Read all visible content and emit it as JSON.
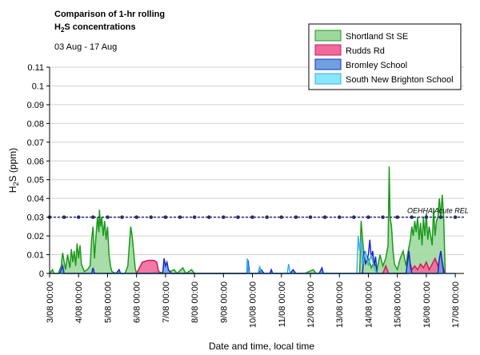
{
  "chart_data": {
    "type": "area",
    "title_line1": "Comparison of 1-hr rolling",
    "title_line2_pre": "H",
    "title_line2_sub": "2",
    "title_line2_post": "S concentrations",
    "subtitle": "03 Aug - 17 Aug",
    "ylabel_pre": "H",
    "ylabel_sub": "2",
    "ylabel_post": "S (ppm)",
    "xlabel": "Date and time, local time",
    "ylim": [
      0,
      0.11
    ],
    "y_ticks": [
      "0",
      "0.01",
      "0.02",
      "0.03",
      "0.04",
      "0.05",
      "0.06",
      "0.07",
      "0.08",
      "0.09",
      "0.1",
      "0.11"
    ],
    "x_ticks": [
      "3/08 00:00",
      "4/08 00:00",
      "5/08 00:00",
      "6/08 00:00",
      "7/08 00:00",
      "8/08 00:00",
      "9/08 00:00",
      "10/08 00:00",
      "11/08 00:00",
      "12/08 00:00",
      "13/08 00:00",
      "14/08 00:00",
      "15/08 00:00",
      "16/08 00:00",
      "17/08 00:00"
    ],
    "grid": true,
    "legend_position": "top-right",
    "reference_line": {
      "label": "OEHHA Acute REL",
      "value": 0.03,
      "color": "#2a2a6a"
    },
    "series": [
      {
        "name": "Shortland St SE",
        "fill": "#9fd89f",
        "stroke": "#1a9a1a",
        "points": [
          [
            0.0,
            0
          ],
          [
            0.1,
            0.002
          ],
          [
            0.15,
            0
          ],
          [
            0.3,
            0
          ],
          [
            0.4,
            0.004
          ],
          [
            0.45,
            0.011
          ],
          [
            0.55,
            0.002
          ],
          [
            0.62,
            0.01
          ],
          [
            0.7,
            0.003
          ],
          [
            0.75,
            0.013
          ],
          [
            0.8,
            0.006
          ],
          [
            0.85,
            0.012
          ],
          [
            0.9,
            0.004
          ],
          [
            0.95,
            0.016
          ],
          [
            1.0,
            0.008
          ],
          [
            1.05,
            0.015
          ],
          [
            1.1,
            0.005
          ],
          [
            1.2,
            0.001
          ],
          [
            1.3,
            0.002
          ],
          [
            1.4,
            0.004
          ],
          [
            1.45,
            0.018
          ],
          [
            1.5,
            0.025
          ],
          [
            1.55,
            0.008
          ],
          [
            1.6,
            0.02
          ],
          [
            1.65,
            0.03
          ],
          [
            1.7,
            0.022
          ],
          [
            1.72,
            0.034
          ],
          [
            1.76,
            0.025
          ],
          [
            1.8,
            0.03
          ],
          [
            1.85,
            0.02
          ],
          [
            1.9,
            0.028
          ],
          [
            1.95,
            0.018
          ],
          [
            2.0,
            0.025
          ],
          [
            2.05,
            0.01
          ],
          [
            2.1,
            0.004
          ],
          [
            2.15,
            0.001
          ],
          [
            2.3,
            0
          ],
          [
            2.6,
            0
          ],
          [
            2.7,
            0.004
          ],
          [
            2.75,
            0.015
          ],
          [
            2.8,
            0.025
          ],
          [
            2.85,
            0.02
          ],
          [
            2.9,
            0.012
          ],
          [
            2.95,
            0.003
          ],
          [
            3.0,
            0
          ],
          [
            3.5,
            0
          ],
          [
            3.7,
            0.001
          ],
          [
            4.0,
            0
          ],
          [
            4.3,
            0.002
          ],
          [
            4.4,
            0
          ],
          [
            4.6,
            0.003
          ],
          [
            4.7,
            0
          ],
          [
            4.9,
            0.002
          ],
          [
            5.0,
            0
          ],
          [
            8.8,
            0
          ],
          [
            9.1,
            0.002
          ],
          [
            9.2,
            0
          ],
          [
            10.7,
            0
          ],
          [
            10.72,
            0.012
          ],
          [
            10.75,
            0.028
          ],
          [
            10.8,
            0.018
          ],
          [
            10.85,
            0.01
          ],
          [
            10.9,
            0.005
          ],
          [
            11.0,
            0.008
          ],
          [
            11.1,
            0.003
          ],
          [
            11.2,
            0.006
          ],
          [
            11.3,
            0.002
          ],
          [
            11.4,
            0.01
          ],
          [
            11.5,
            0.004
          ],
          [
            11.6,
            0.008
          ],
          [
            11.68,
            0.015
          ],
          [
            11.72,
            0.057
          ],
          [
            11.75,
            0.03
          ],
          [
            11.8,
            0.025
          ],
          [
            11.85,
            0.012
          ],
          [
            11.9,
            0.005
          ],
          [
            12.0,
            0.002
          ],
          [
            12.1,
            0.008
          ],
          [
            12.2,
            0.012
          ],
          [
            12.25,
            0.008
          ],
          [
            12.3,
            0.004
          ],
          [
            12.35,
            0.01
          ],
          [
            12.45,
            0.018
          ],
          [
            12.5,
            0.025
          ],
          [
            12.55,
            0.02
          ],
          [
            12.6,
            0.028
          ],
          [
            12.65,
            0.022
          ],
          [
            12.7,
            0.03
          ],
          [
            12.75,
            0.018
          ],
          [
            12.8,
            0.027
          ],
          [
            12.85,
            0.015
          ],
          [
            12.9,
            0.03
          ],
          [
            12.95,
            0.02
          ],
          [
            13.0,
            0.032
          ],
          [
            13.05,
            0.018
          ],
          [
            13.1,
            0.025
          ],
          [
            13.2,
            0.015
          ],
          [
            13.25,
            0.035
          ],
          [
            13.3,
            0.02
          ],
          [
            13.35,
            0.028
          ],
          [
            13.4,
            0.03
          ],
          [
            13.45,
            0.04
          ],
          [
            13.5,
            0.03
          ],
          [
            13.55,
            0.042
          ],
          [
            13.6,
            0.03
          ],
          [
            13.65,
            0
          ]
        ]
      },
      {
        "name": "Rudds Rd",
        "fill": "#f06a9c",
        "stroke": "#d01a5a",
        "points": [
          [
            3.0,
            0
          ],
          [
            3.1,
            0.003
          ],
          [
            3.2,
            0.006
          ],
          [
            3.4,
            0.007
          ],
          [
            3.6,
            0.007
          ],
          [
            3.7,
            0.006
          ],
          [
            3.75,
            0.002
          ],
          [
            3.8,
            0
          ],
          [
            11.5,
            0
          ],
          [
            11.6,
            0.004
          ],
          [
            11.7,
            0
          ],
          [
            12.4,
            0
          ],
          [
            12.45,
            0.005
          ],
          [
            12.5,
            0.002
          ],
          [
            12.6,
            0.004
          ],
          [
            12.7,
            0.002
          ],
          [
            12.8,
            0.005
          ],
          [
            12.9,
            0.003
          ],
          [
            13.0,
            0.006
          ],
          [
            13.1,
            0.002
          ],
          [
            13.2,
            0.005
          ],
          [
            13.3,
            0.008
          ],
          [
            13.4,
            0.004
          ],
          [
            13.5,
            0.01
          ],
          [
            13.55,
            0.006
          ],
          [
            13.6,
            0.002
          ],
          [
            13.65,
            0
          ]
        ]
      },
      {
        "name": "Bromley School",
        "fill": "#6fa0e0",
        "stroke": "#1a2ac8",
        "points": [
          [
            0.35,
            0
          ],
          [
            0.45,
            0.004
          ],
          [
            0.5,
            0
          ],
          [
            1.45,
            0
          ],
          [
            1.5,
            0.003
          ],
          [
            1.55,
            0
          ],
          [
            2.3,
            0
          ],
          [
            2.4,
            0.002
          ],
          [
            2.45,
            0
          ],
          [
            3.9,
            0
          ],
          [
            3.95,
            0.008
          ],
          [
            4.0,
            0.004
          ],
          [
            4.05,
            0.006
          ],
          [
            4.1,
            0.002
          ],
          [
            4.2,
            0
          ],
          [
            6.8,
            0
          ],
          [
            6.85,
            0.007
          ],
          [
            6.9,
            0
          ],
          [
            7.2,
            0
          ],
          [
            7.3,
            0.002
          ],
          [
            7.4,
            0
          ],
          [
            7.6,
            0
          ],
          [
            7.65,
            0.002
          ],
          [
            7.7,
            0
          ],
          [
            8.3,
            0
          ],
          [
            8.4,
            0.002
          ],
          [
            8.5,
            0
          ],
          [
            9.3,
            0
          ],
          [
            9.4,
            0.003
          ],
          [
            9.45,
            0
          ],
          [
            12.3,
            0
          ],
          [
            12.4,
            0.012
          ],
          [
            12.45,
            0.004
          ],
          [
            12.5,
            0
          ],
          [
            13.4,
            0
          ],
          [
            13.45,
            0.008
          ],
          [
            13.5,
            0.012
          ],
          [
            13.55,
            0.006
          ],
          [
            13.6,
            0
          ]
        ]
      },
      {
        "name": "South New Brighton School",
        "fill": "#88e6ff",
        "stroke": "#3ab0e6",
        "points": [
          [
            0,
            0
          ],
          [
            14,
            0
          ]
        ]
      }
    ],
    "extra_lines": [
      {
        "color": "#1a2ac8",
        "points": [
          [
            10.8,
            0
          ],
          [
            10.85,
            0.012
          ],
          [
            10.9,
            0.005
          ],
          [
            11.0,
            0.01
          ],
          [
            11.05,
            0.018
          ],
          [
            11.1,
            0.008
          ],
          [
            11.15,
            0.012
          ],
          [
            11.2,
            0.004
          ],
          [
            11.25,
            0.009
          ],
          [
            11.3,
            0
          ]
        ]
      },
      {
        "color": "#3ab0e6",
        "points": [
          [
            6.8,
            0
          ],
          [
            6.82,
            0.008
          ],
          [
            6.86,
            0.002
          ],
          [
            6.9,
            0
          ],
          [
            7.2,
            0
          ],
          [
            7.25,
            0.004
          ],
          [
            7.3,
            0
          ],
          [
            8.2,
            0
          ],
          [
            8.25,
            0.005
          ],
          [
            8.3,
            0
          ],
          [
            10.6,
            0
          ],
          [
            10.65,
            0.02
          ],
          [
            10.7,
            0.012
          ],
          [
            10.75,
            0.018
          ],
          [
            10.8,
            0.005
          ],
          [
            10.9,
            0.012
          ],
          [
            11.0,
            0.004
          ],
          [
            11.1,
            0.01
          ],
          [
            11.2,
            0.003
          ],
          [
            11.3,
            0
          ]
        ]
      }
    ]
  }
}
